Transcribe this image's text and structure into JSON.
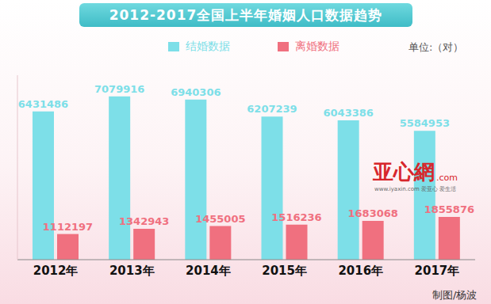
{
  "chart_data": {
    "type": "bar",
    "title": "2012-2017全国上半年婚姻人口数据趋势",
    "categories": [
      "2012年",
      "2013年",
      "2014年",
      "2015年",
      "2016年",
      "2017年"
    ],
    "series": [
      {
        "name": "结婚数据",
        "color": "#7ddfe8",
        "values": [
          6431486,
          7079916,
          6940306,
          6207239,
          6043386,
          5584953
        ]
      },
      {
        "name": "离婚数据",
        "color": "#f0707f",
        "values": [
          1112197,
          1342943,
          1455005,
          1516236,
          1683068,
          1855876
        ]
      }
    ],
    "ylim": [
      0,
      8000000
    ],
    "data_labels": true,
    "tick_labels": "x",
    "grid": false,
    "annotations": [
      "单位:（对）",
      "制图/杨波",
      "亚心網",
      ".com",
      "www.iyaxin.com 爱亚心 爱生活"
    ]
  }
}
